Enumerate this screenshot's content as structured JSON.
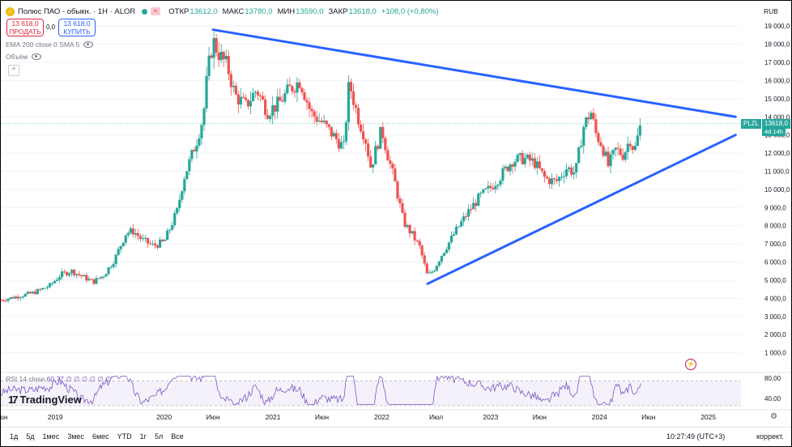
{
  "header": {
    "symbol": "Полюс ПАО - обыкн. · 1Н · ALOR",
    "logo_glyph": "☆",
    "wave_glyph": "≈",
    "open_label": "ОТКР",
    "open_value": "13612,0",
    "high_label": "МАКС",
    "high_value": "13780,0",
    "low_label": "МИН",
    "low_value": "13590,0",
    "close_label": "ЗАКР",
    "close_value": "13618,0",
    "change_value": "+108,0 (+0,80%)",
    "up_color": "#26a69a",
    "down_color": "#ef5350"
  },
  "trade": {
    "sell_price": "13 618,0",
    "sell_label": "ПРОДАТЬ",
    "spread": "0,0",
    "buy_price": "13 618,0",
    "buy_label": "КУПИТЬ"
  },
  "indicators": {
    "ema": "EMA 200 close 0 SMA 5",
    "volume": "Объём",
    "rsi_label": "RSI 14 close",
    "rsi_values": "60,77  ∅  ∅  ∅  ∅  ∅  ∅",
    "collapse_glyph": "^"
  },
  "price_tag": {
    "ticker": "PLZL",
    "price": "13618,0",
    "countdown": "4d 14h"
  },
  "currency": "RUB",
  "branding": {
    "mark": "17",
    "name": "TradingView"
  },
  "icons": {
    "flash": "⚡",
    "gear": "⚙"
  },
  "bottom_bar": {
    "periods": [
      "1д",
      "5д",
      "1мес",
      "3мес",
      "6мес",
      "YTD",
      "1г",
      "5л",
      "Все"
    ],
    "time": "10:27:49 (UTC+3)",
    "adjust": "коррект."
  },
  "chart_data": {
    "type": "candlestick",
    "title": "",
    "xlabel": "",
    "ylabel": "",
    "ylim": [
      0,
      19500
    ],
    "y_ticks": [
      "19 000,0",
      "18 000,0",
      "17 000,0",
      "16 000,0",
      "15 000,0",
      "14 000,0",
      "13 000,0",
      "12 000,0",
      "11 000,0",
      "10 000,0",
      "9 000,0",
      "8 000,0",
      "7 000,0",
      "6 000,0",
      "5 000,0",
      "4 000,0",
      "3 000,0",
      "2 000,0",
      "1 000,0"
    ],
    "y_tick_values": [
      19000,
      18000,
      17000,
      16000,
      15000,
      14000,
      13000,
      12000,
      11000,
      10000,
      9000,
      8000,
      7000,
      6000,
      5000,
      4000,
      3000,
      2000,
      1000
    ],
    "x_range": [
      2018.5,
      2025.3
    ],
    "x_ticks": [
      {
        "t": 2018.5,
        "label": "Июн"
      },
      {
        "t": 2019.0,
        "label": "2019"
      },
      {
        "t": 2020.0,
        "label": "2020"
      },
      {
        "t": 2020.45,
        "label": "Июн"
      },
      {
        "t": 2021.0,
        "label": "2021"
      },
      {
        "t": 2021.45,
        "label": "Июн"
      },
      {
        "t": 2022.0,
        "label": "2022"
      },
      {
        "t": 2022.5,
        "label": "Июл"
      },
      {
        "t": 2023.0,
        "label": "2023"
      },
      {
        "t": 2023.45,
        "label": "Июн"
      },
      {
        "t": 2024.0,
        "label": "2024"
      },
      {
        "t": 2024.45,
        "label": "Июн"
      },
      {
        "t": 2025.0,
        "label": "2025"
      }
    ],
    "price_path": [
      [
        2018.5,
        3900
      ],
      [
        2018.65,
        4100
      ],
      [
        2018.8,
        4300
      ],
      [
        2018.95,
        4700
      ],
      [
        2019.05,
        5300
      ],
      [
        2019.15,
        5500
      ],
      [
        2019.25,
        5200
      ],
      [
        2019.35,
        4900
      ],
      [
        2019.45,
        5300
      ],
      [
        2019.55,
        6200
      ],
      [
        2019.65,
        7600
      ],
      [
        2019.72,
        7700
      ],
      [
        2019.8,
        7200
      ],
      [
        2019.9,
        6900
      ],
      [
        2020.0,
        7100
      ],
      [
        2020.05,
        7800
      ],
      [
        2020.12,
        8800
      ],
      [
        2020.18,
        10600
      ],
      [
        2020.25,
        11800
      ],
      [
        2020.3,
        12700
      ],
      [
        2020.36,
        14000
      ],
      [
        2020.4,
        16500
      ],
      [
        2020.45,
        18200
      ],
      [
        2020.5,
        17500
      ],
      [
        2020.58,
        16800
      ],
      [
        2020.65,
        15200
      ],
      [
        2020.75,
        14600
      ],
      [
        2020.85,
        15500
      ],
      [
        2020.95,
        14300
      ],
      [
        2021.05,
        14700
      ],
      [
        2021.15,
        15500
      ],
      [
        2021.25,
        16000
      ],
      [
        2021.35,
        14200
      ],
      [
        2021.45,
        13700
      ],
      [
        2021.55,
        13000
      ],
      [
        2021.65,
        12300
      ],
      [
        2021.7,
        15900
      ],
      [
        2021.78,
        14000
      ],
      [
        2021.85,
        12800
      ],
      [
        2021.9,
        11200
      ],
      [
        2021.96,
        12500
      ],
      [
        2022.0,
        13300
      ],
      [
        2022.05,
        12000
      ],
      [
        2022.12,
        10400
      ],
      [
        2022.2,
        8200
      ],
      [
        2022.28,
        7500
      ],
      [
        2022.35,
        6800
      ],
      [
        2022.42,
        5200
      ],
      [
        2022.48,
        5600
      ],
      [
        2022.55,
        6400
      ],
      [
        2022.62,
        7100
      ],
      [
        2022.7,
        7900
      ],
      [
        2022.8,
        8800
      ],
      [
        2022.9,
        9600
      ],
      [
        2023.0,
        10100
      ],
      [
        2023.1,
        10800
      ],
      [
        2023.2,
        11600
      ],
      [
        2023.3,
        11700
      ],
      [
        2023.4,
        11500
      ],
      [
        2023.5,
        10600
      ],
      [
        2023.6,
        10400
      ],
      [
        2023.7,
        11200
      ],
      [
        2023.78,
        10900
      ],
      [
        2023.85,
        13400
      ],
      [
        2023.92,
        14300
      ],
      [
        2023.97,
        13000
      ],
      [
        2024.02,
        12500
      ],
      [
        2024.08,
        11300
      ],
      [
        2024.15,
        12200
      ],
      [
        2024.22,
        11900
      ],
      [
        2024.28,
        12800
      ],
      [
        2024.32,
        12100
      ],
      [
        2024.38,
        13618
      ]
    ],
    "trendlines": [
      {
        "name": "upper",
        "from": [
          2020.45,
          18800
        ],
        "to": [
          2025.25,
          14000
        ]
      },
      {
        "name": "lower",
        "from": [
          2022.42,
          4800
        ],
        "to": [
          2025.25,
          13000
        ]
      }
    ],
    "last_price": 13618,
    "rsi": {
      "ylim": [
        30,
        80
      ],
      "y_ticks": [
        "80,00",
        "40,00"
      ],
      "levels": [
        70,
        30
      ],
      "last": 60.77
    }
  }
}
